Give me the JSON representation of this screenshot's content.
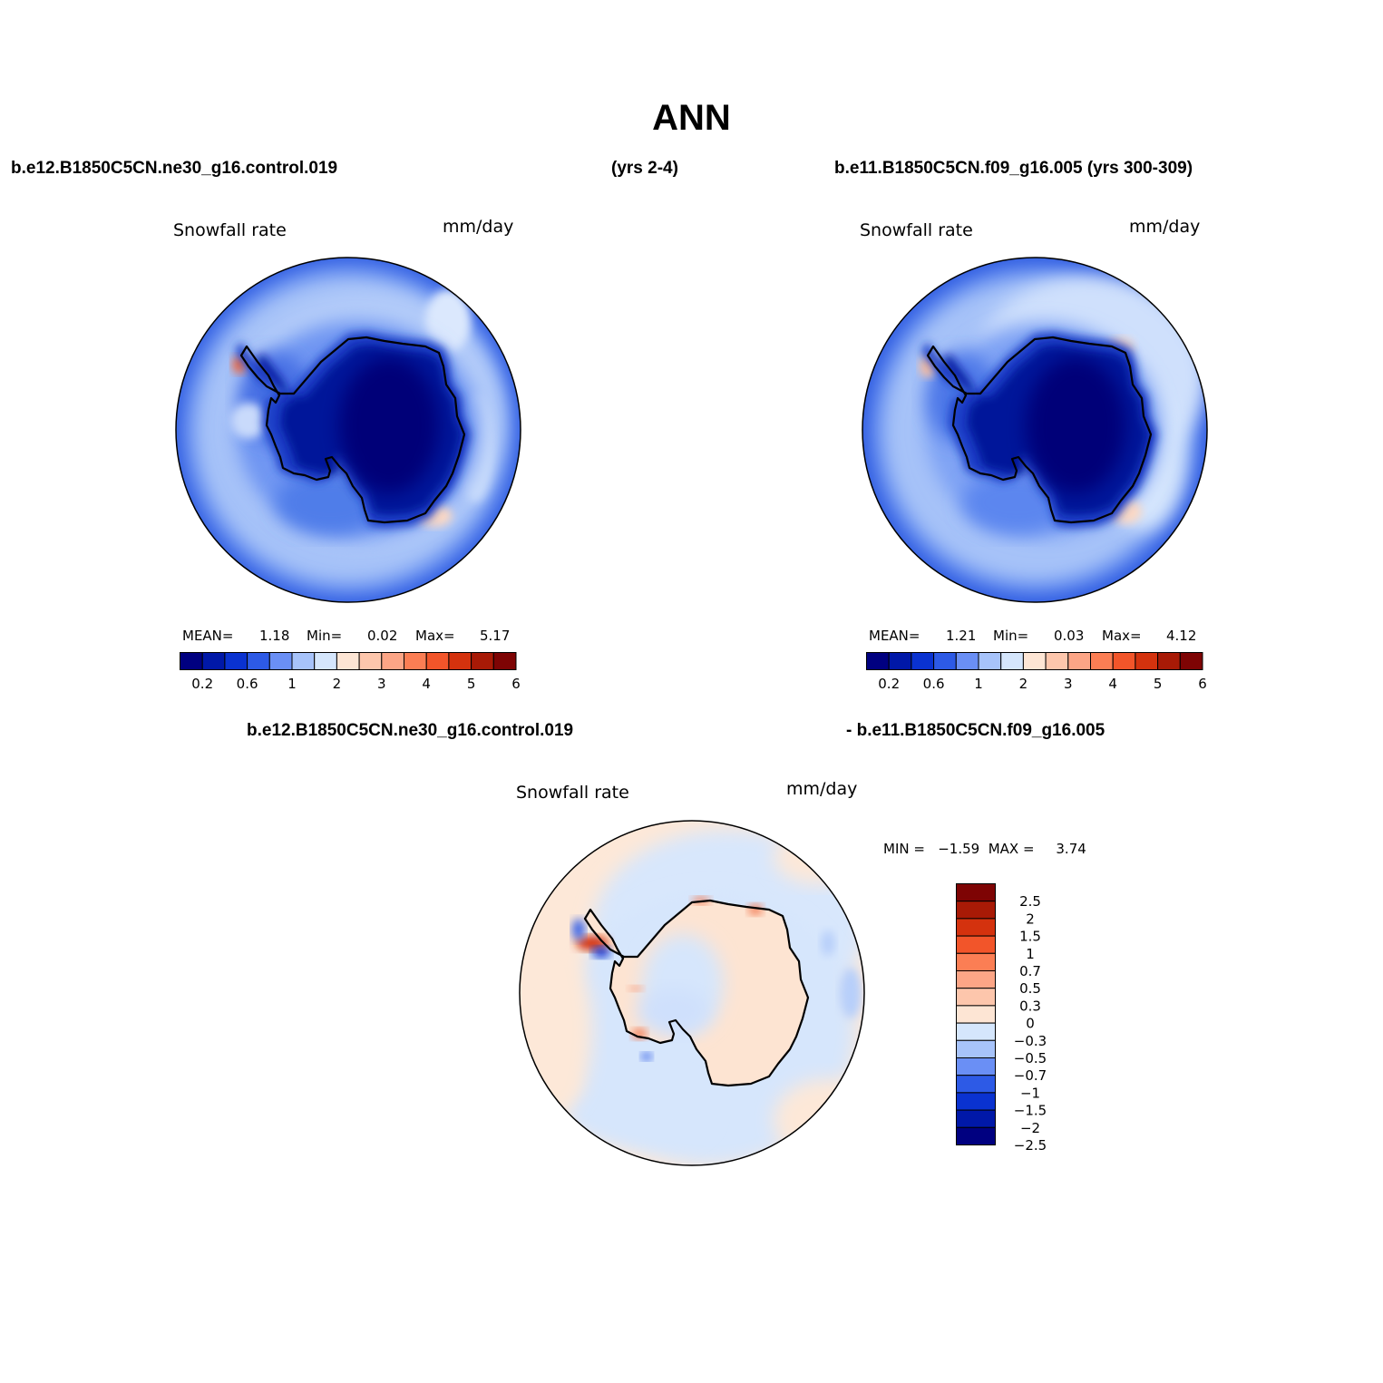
{
  "title": "ANN",
  "top_left": {
    "case": "b.e12.B1850C5CN.ne30_g16.control.019",
    "years": "(yrs 2-4)",
    "variable": "Snowfall rate",
    "units": "mm/day",
    "mean_label": "MEAN=",
    "mean": "1.18",
    "min_label": "Min=",
    "min": "0.02",
    "max_label": "Max=",
    "max": "5.17"
  },
  "top_right": {
    "case": "b.e11.B1850C5CN.f09_g16.005 (yrs 300-309)",
    "variable": "Snowfall rate",
    "units": "mm/day",
    "mean_label": "MEAN=",
    "mean": "1.21",
    "min_label": "Min=",
    "min": "0.03",
    "max_label": "Max=",
    "max": "4.12"
  },
  "bottom": {
    "case_a": "b.e12.B1850C5CN.ne30_g16.control.019",
    "case_b": "- b.e11.B1850C5CN.f09_g16.005",
    "variable": "Snowfall rate",
    "units": "mm/day",
    "minmax": "MIN =   −1.59  MAX =     3.74"
  },
  "abs_colorbar": {
    "colors": [
      "#000080",
      "#0018a8",
      "#0a32d0",
      "#2d5ae6",
      "#6a8ff5",
      "#a7c3fa",
      "#d5e6fc",
      "#fde5d4",
      "#fdc6ac",
      "#fca586",
      "#fb7e54",
      "#f2552a",
      "#d4320e",
      "#a81a06",
      "#7e0404"
    ],
    "labels": [
      "0.2",
      "0.6",
      "1",
      "2",
      "3",
      "4",
      "5",
      "6"
    ]
  },
  "diff_colorbar": {
    "colors": [
      "#7e0404",
      "#a81a06",
      "#d4320e",
      "#f2552a",
      "#fb7e54",
      "#fca586",
      "#fdc6ac",
      "#fde5d4",
      "#d5e6fc",
      "#a7c3fa",
      "#6a8ff5",
      "#2d5ae6",
      "#0a32d0",
      "#0018a8",
      "#000080"
    ],
    "labels": [
      "2.5",
      "2",
      "1.5",
      "1",
      "0.7",
      "0.5",
      "0.3",
      "0",
      "−0.3",
      "−0.5",
      "−0.7",
      "−1",
      "−1.5",
      "−2",
      "−2.5"
    ]
  }
}
